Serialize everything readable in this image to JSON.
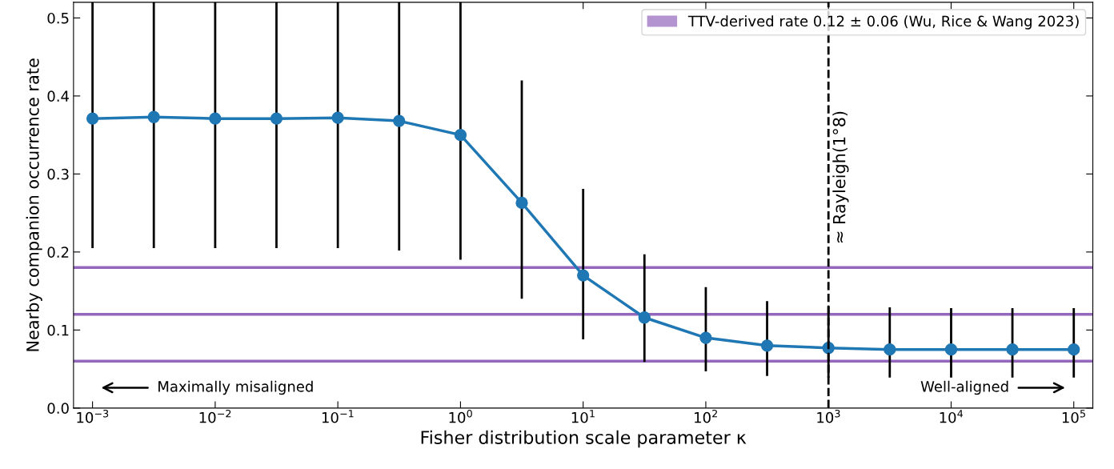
{
  "chart_data": {
    "type": "line",
    "xlabel": "Fisher distribution scale parameter κ",
    "ylabel": "Nearby companion occurrence rate",
    "x": [
      0.001,
      0.00316,
      0.01,
      0.0316,
      0.1,
      0.316,
      1,
      3.16,
      10,
      31.6,
      100,
      316,
      1000,
      3160,
      10000,
      31600,
      100000
    ],
    "series": [
      {
        "color": "#1f77b4",
        "values": [
          0.371,
          0.373,
          0.371,
          0.371,
          0.372,
          0.368,
          0.35,
          0.263,
          0.17,
          0.116,
          0.09,
          0.08,
          0.077,
          0.075,
          0.075,
          0.075,
          0.075
        ],
        "errors": [
          [
            0.205,
            0.52
          ],
          [
            0.205,
            0.52
          ],
          [
            0.205,
            0.52
          ],
          [
            0.205,
            0.52
          ],
          [
            0.205,
            0.52
          ],
          [
            0.202,
            0.52
          ],
          [
            0.19,
            0.52
          ],
          [
            0.14,
            0.42
          ],
          [
            0.088,
            0.281
          ],
          [
            0.059,
            0.197
          ],
          [
            0.047,
            0.155
          ],
          [
            0.041,
            0.137
          ],
          [
            0.039,
            0.13
          ],
          [
            0.039,
            0.129
          ],
          [
            0.039,
            0.128
          ],
          [
            0.039,
            0.128
          ],
          [
            0.039,
            0.128
          ]
        ]
      }
    ],
    "log": "x",
    "marker": "circle",
    "line_style": "solid",
    "grid": false,
    "legend": "top right",
    "xlim": [
      0.0007,
      143000
    ],
    "ylim": [
      0,
      0.52
    ],
    "xticks": [
      {
        "value": 0.001,
        "label": "10$^{−3}$"
      },
      {
        "value": 0.01,
        "label": "10$^{−2}$"
      },
      {
        "value": 0.1,
        "label": "10$^{−1}$"
      },
      {
        "value": 1,
        "label": "10$^{0}$"
      },
      {
        "value": 10,
        "label": "10$^{1}$"
      },
      {
        "value": 100,
        "label": "10$^{2}$"
      },
      {
        "value": 1000,
        "label": "10$^{3}$"
      },
      {
        "value": 10000,
        "label": "10$^{4}$"
      },
      {
        "value": 100000,
        "label": "10$^{5}$"
      }
    ],
    "yticks": [
      {
        "value": 0,
        "label": "0.0"
      },
      0.1,
      0.2,
      0.3,
      0.4,
      0.5
    ],
    "ref_lines": [
      {
        "axis": "y",
        "value": 0.06,
        "color": "#9467bd"
      },
      {
        "axis": "y",
        "value": 0.12,
        "color": "#9467bd",
        "label": "TTV-derived rate 0.12 ± 0.06 (Wu, Rice & Wang 2023)"
      },
      {
        "axis": "y",
        "value": 0.18,
        "color": "#9467bd"
      },
      {
        "axis": "x",
        "value": 1000,
        "color": "#000000",
        "line_style": "dashed",
        "label": "≈ Rayleigh(1°8)"
      }
    ],
    "annotations": [
      "Maximally misaligned",
      "Well-aligned"
    ]
  }
}
